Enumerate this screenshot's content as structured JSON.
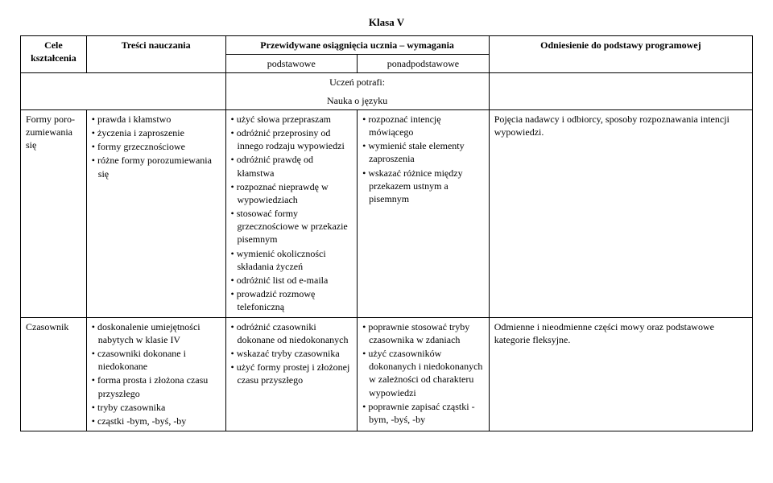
{
  "title": "Klasa V",
  "headers": {
    "cele": "Cele kształcenia",
    "tresci": "Treści nauczania",
    "przewidywane": "Przewidywane osiągnięcia ucznia – wymagania",
    "podstawowe": "podstawowe",
    "ponadpodstawowe": "ponadpodstawowe",
    "odniesienie": "Odniesienie do podstawy programowej",
    "uczen": "Uczeń potrafi:",
    "nauka": "Nauka o języku"
  },
  "rows": [
    {
      "cele": "Formy poro­zumiewania się",
      "tresci": [
        "prawda i kłamstwo",
        "życzenia i zaproszenie",
        "formy grzecznościowe",
        "różne formy porozumiewania się"
      ],
      "podst": [
        "użyć słowa przepraszam",
        "odróżnić przeprosiny od innego rodzaju wypowiedzi",
        "odróżnić prawdę od kłamstwa",
        "rozpoznać nieprawdę w wypowiedziach",
        "stosować formy grzecznościowe w przekazie pisemnym",
        "wymienić okoliczności składania życzeń",
        "odróżnić list od e-maila",
        "prowadzić rozmowę telefoniczną"
      ],
      "ponad": [
        "rozpoznać intencję mówiącego",
        "wymienić stałe elementy zaproszenia",
        "wskazać różnice między przekazem ustnym a pisemnym"
      ],
      "odn": "Pojęcia nadawcy i odbiorcy, sposoby rozpoznawania intencji wypowiedzi."
    },
    {
      "cele": "Czasownik",
      "tresci": [
        "doskonalenie umiejętności nabytych w klasie IV",
        "czasowniki dokonane i niedokonane",
        "forma prosta i złożona czasu przyszłego",
        "tryby czasownika",
        "cząstki -bym, -byś, -by"
      ],
      "podst": [
        "odróżnić czasowniki dokonane od niedokona­nych",
        "wskazać tryby czasownika",
        "użyć formy prostej i złożonej czasu przyszłego"
      ],
      "ponad": [
        "poprawnie stosować tryby czasownika w zdaniach",
        "użyć czasowników dokonanych i niedokona­nych w zależności od charakteru wypowiedzi",
        "poprawnie zapisać cząstki -bym, -byś, -by"
      ],
      "odn": "Odmienne i nieodmienne części mowy oraz podstawowe kategorie fleksyjne."
    }
  ]
}
